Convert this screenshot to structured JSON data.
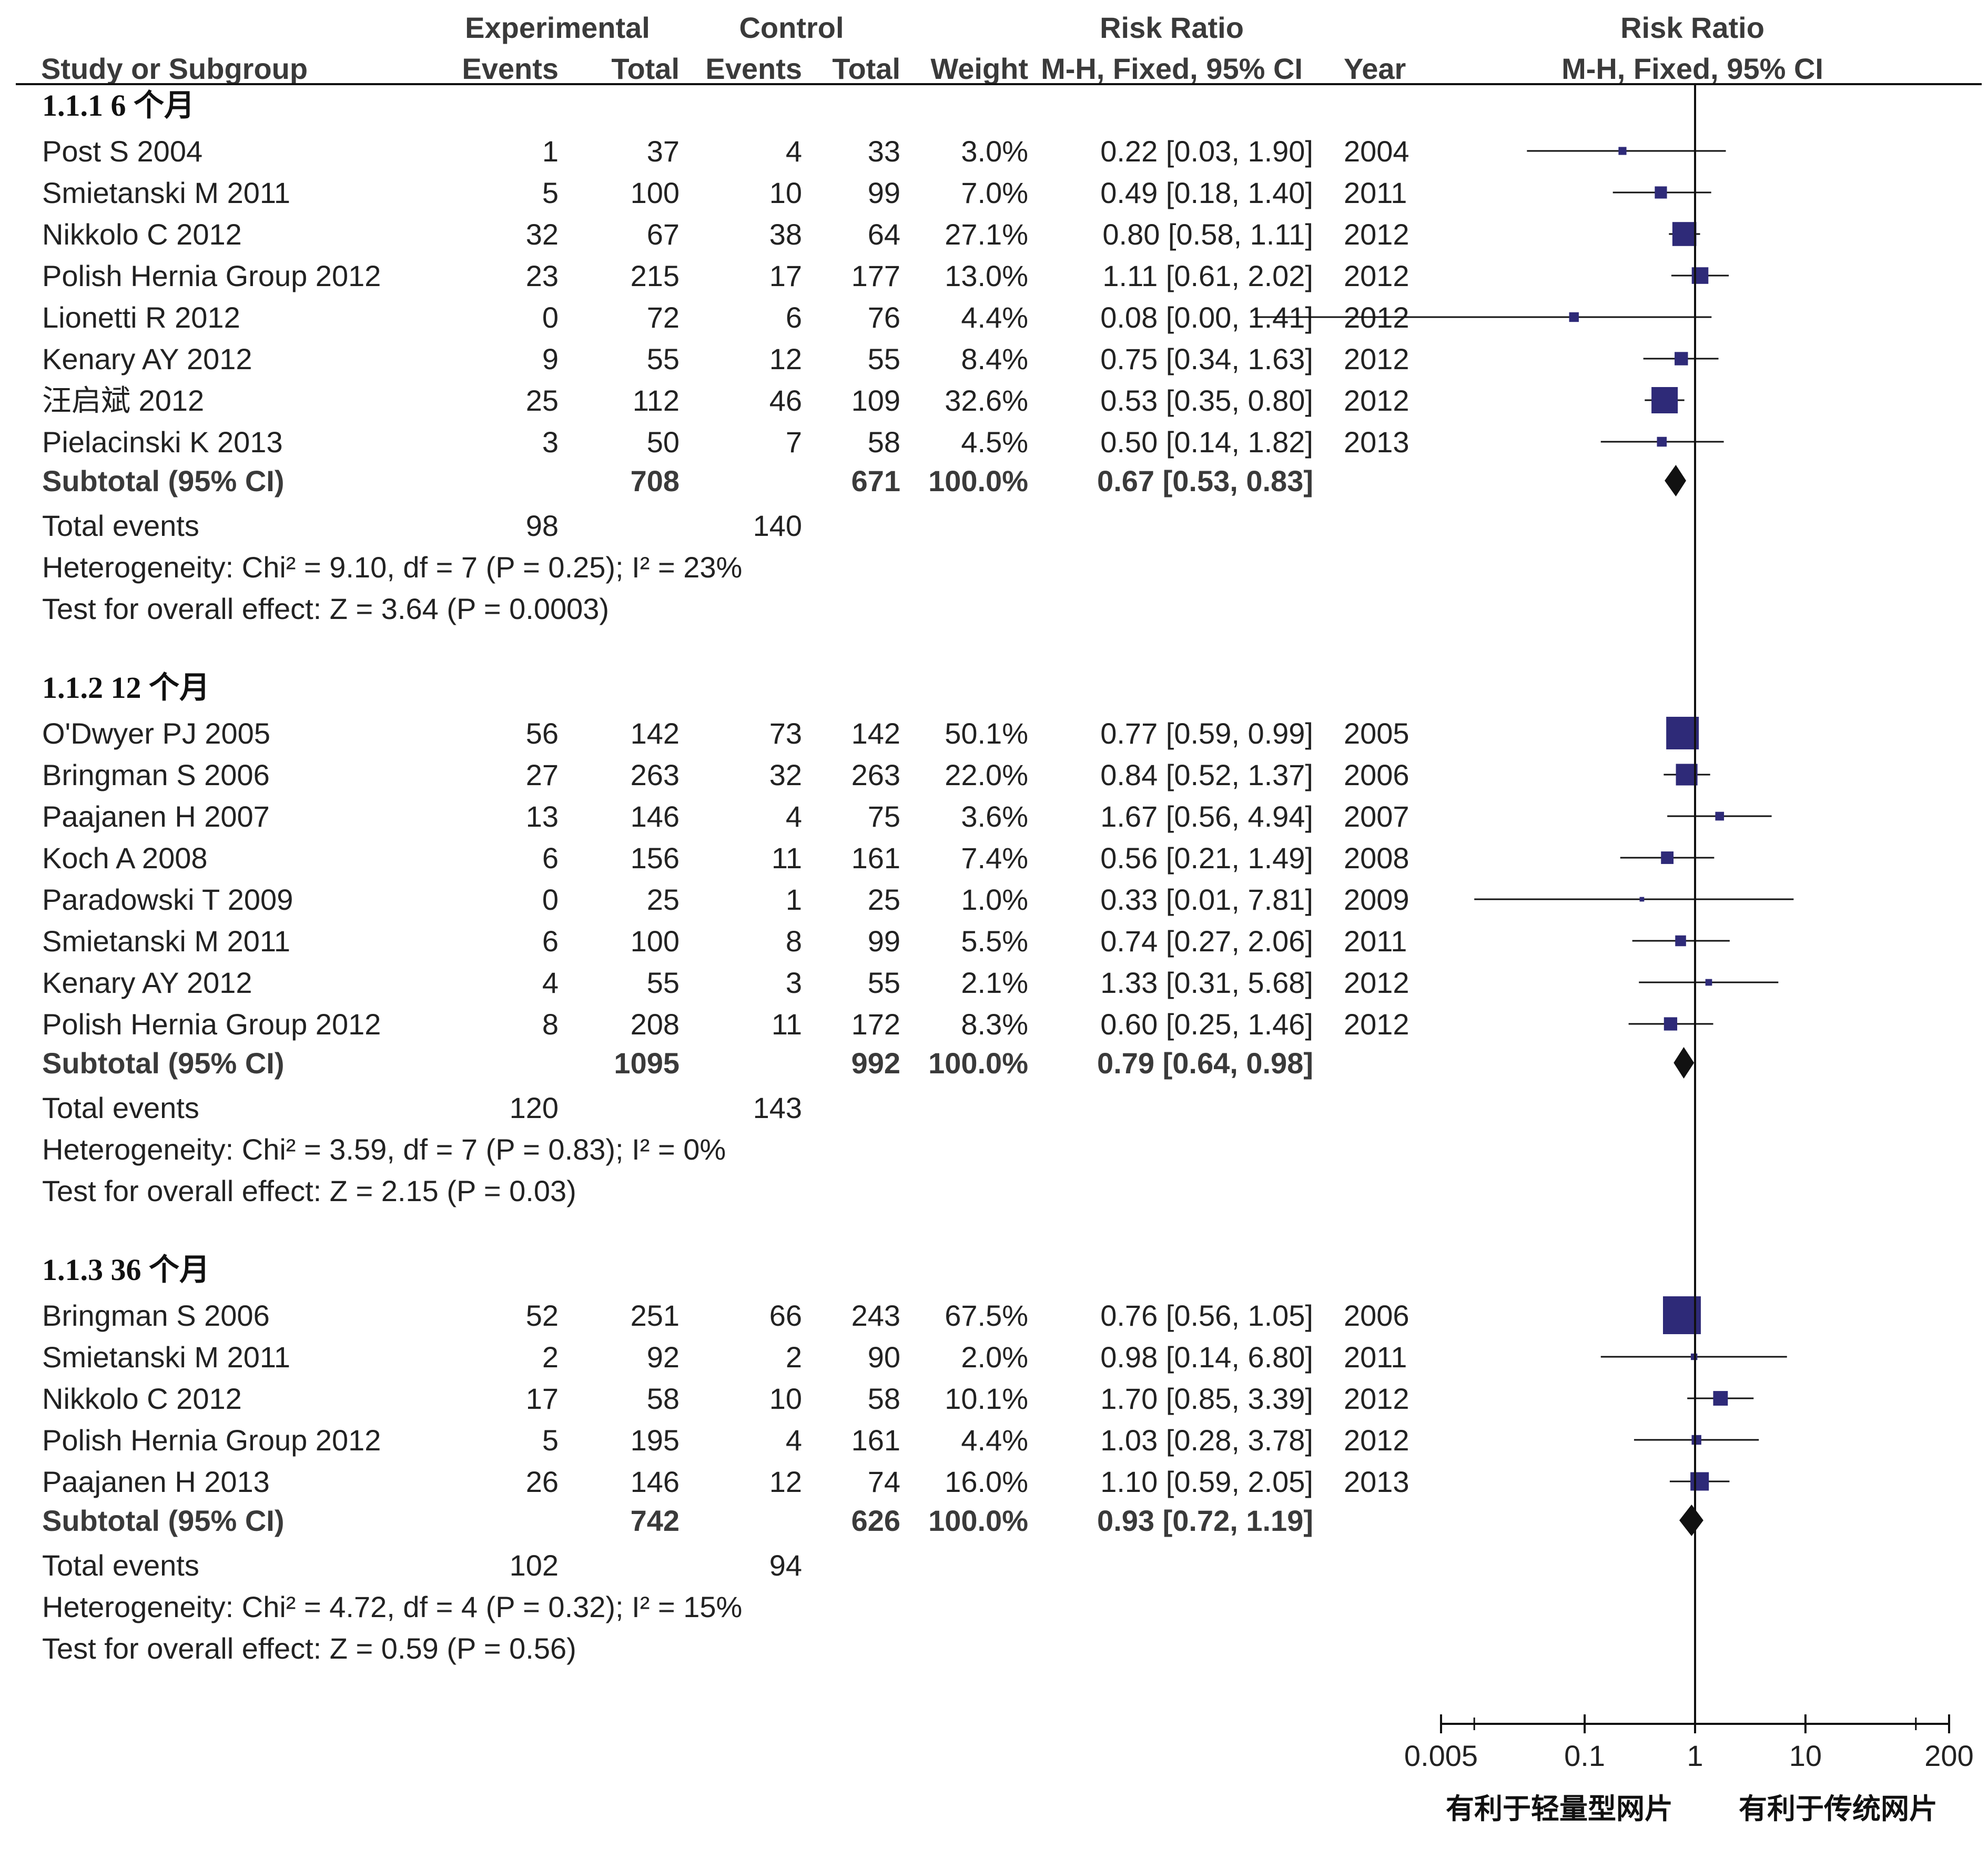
{
  "header": {
    "col_study": "Study or Subgroup",
    "group_exp": "Experimental",
    "group_ctrl": "Control",
    "col_events": "Events",
    "col_total": "Total",
    "col_weight": "Weight",
    "col_rr": "Risk Ratio",
    "col_method": "M-H, Fixed, 95% CI",
    "col_year": "Year",
    "plot_title": "Risk Ratio",
    "plot_method": "M-H, Fixed, 95% CI"
  },
  "subtotal_label": "Subtotal (95% CI)",
  "total_events_label": "Total events",
  "axis": {
    "ticks": [
      "0.005",
      "0.1",
      "1",
      "10",
      "200"
    ],
    "tick_values": [
      0.005,
      0.1,
      1,
      10,
      200
    ],
    "favours_left": "有利于轻量型网片",
    "favours_right": "有利于传统网片"
  },
  "colors": {
    "square": "#2e2a78",
    "diamond": "#111111",
    "line": "#111111"
  },
  "chart_data": {
    "type": "forest",
    "measure": "Risk Ratio",
    "method": "M-H, Fixed, 95% CI",
    "x_scale": "log",
    "xlim": [
      0.005,
      200
    ],
    "subgroups": [
      {
        "label": "1.1.1 6 个月",
        "studies": [
          {
            "study": "Post S 2004",
            "e_events": "1",
            "e_total": "37",
            "c_events": "4",
            "c_total": "33",
            "weight": "3.0%",
            "ci_text": "0.22 [0.03, 1.90]",
            "year": "2004",
            "rr": 0.22,
            "lo": 0.03,
            "hi": 1.9
          },
          {
            "study": "Smietanski M 2011",
            "e_events": "5",
            "e_total": "100",
            "c_events": "10",
            "c_total": "99",
            "weight": "7.0%",
            "ci_text": "0.49 [0.18, 1.40]",
            "year": "2011",
            "rr": 0.49,
            "lo": 0.18,
            "hi": 1.4
          },
          {
            "study": "Nikkolo C 2012",
            "e_events": "32",
            "e_total": "67",
            "c_events": "38",
            "c_total": "64",
            "weight": "27.1%",
            "ci_text": "0.80 [0.58, 1.11]",
            "year": "2012",
            "rr": 0.8,
            "lo": 0.58,
            "hi": 1.11
          },
          {
            "study": "Polish Hernia Group 2012",
            "e_events": "23",
            "e_total": "215",
            "c_events": "17",
            "c_total": "177",
            "weight": "13.0%",
            "ci_text": "1.11 [0.61, 2.02]",
            "year": "2012",
            "rr": 1.11,
            "lo": 0.61,
            "hi": 2.02
          },
          {
            "study": "Lionetti R 2012",
            "e_events": "0",
            "e_total": "72",
            "c_events": "6",
            "c_total": "76",
            "weight": "4.4%",
            "ci_text": "0.08 [0.00, 1.41]",
            "year": "2012",
            "rr": 0.08,
            "lo": 0.0,
            "hi": 1.41
          },
          {
            "study": "Kenary AY 2012",
            "e_events": "9",
            "e_total": "55",
            "c_events": "12",
            "c_total": "55",
            "weight": "8.4%",
            "ci_text": "0.75 [0.34, 1.63]",
            "year": "2012",
            "rr": 0.75,
            "lo": 0.34,
            "hi": 1.63
          },
          {
            "study": "汪启斌 2012",
            "e_events": "25",
            "e_total": "112",
            "c_events": "46",
            "c_total": "109",
            "weight": "32.6%",
            "ci_text": "0.53 [0.35, 0.80]",
            "year": "2012",
            "rr": 0.53,
            "lo": 0.35,
            "hi": 0.8
          },
          {
            "study": "Pielacinski K 2013",
            "e_events": "3",
            "e_total": "50",
            "c_events": "7",
            "c_total": "58",
            "weight": "4.5%",
            "ci_text": "0.50 [0.14, 1.82]",
            "year": "2013",
            "rr": 0.5,
            "lo": 0.14,
            "hi": 1.82
          }
        ],
        "subtotal": {
          "e_total": "708",
          "c_total": "671",
          "weight": "100.0%",
          "ci_text": "0.67 [0.53, 0.83]",
          "rr": 0.67,
          "lo": 0.53,
          "hi": 0.83
        },
        "total_events": {
          "e": "98",
          "c": "140"
        },
        "heterogeneity": "Heterogeneity: Chi² = 9.10, df = 7 (P = 0.25); I² = 23%",
        "overall_effect": "Test for overall effect: Z = 3.64 (P = 0.0003)"
      },
      {
        "label": "1.1.2 12 个月",
        "studies": [
          {
            "study": "O'Dwyer PJ 2005",
            "e_events": "56",
            "e_total": "142",
            "c_events": "73",
            "c_total": "142",
            "weight": "50.1%",
            "ci_text": "0.77 [0.59, 0.99]",
            "year": "2005",
            "rr": 0.77,
            "lo": 0.59,
            "hi": 0.99
          },
          {
            "study": "Bringman S 2006",
            "e_events": "27",
            "e_total": "263",
            "c_events": "32",
            "c_total": "263",
            "weight": "22.0%",
            "ci_text": "0.84 [0.52, 1.37]",
            "year": "2006",
            "rr": 0.84,
            "lo": 0.52,
            "hi": 1.37
          },
          {
            "study": "Paajanen H 2007",
            "e_events": "13",
            "e_total": "146",
            "c_events": "4",
            "c_total": "75",
            "weight": "3.6%",
            "ci_text": "1.67 [0.56, 4.94]",
            "year": "2007",
            "rr": 1.67,
            "lo": 0.56,
            "hi": 4.94
          },
          {
            "study": "Koch A 2008",
            "e_events": "6",
            "e_total": "156",
            "c_events": "11",
            "c_total": "161",
            "weight": "7.4%",
            "ci_text": "0.56 [0.21, 1.49]",
            "year": "2008",
            "rr": 0.56,
            "lo": 0.21,
            "hi": 1.49
          },
          {
            "study": "Paradowski T 2009",
            "e_events": "0",
            "e_total": "25",
            "c_events": "1",
            "c_total": "25",
            "weight": "1.0%",
            "ci_text": "0.33 [0.01, 7.81]",
            "year": "2009",
            "rr": 0.33,
            "lo": 0.01,
            "hi": 7.81
          },
          {
            "study": "Smietanski M 2011",
            "e_events": "6",
            "e_total": "100",
            "c_events": "8",
            "c_total": "99",
            "weight": "5.5%",
            "ci_text": "0.74 [0.27, 2.06]",
            "year": "2011",
            "rr": 0.74,
            "lo": 0.27,
            "hi": 2.06
          },
          {
            "study": "Kenary AY 2012",
            "e_events": "4",
            "e_total": "55",
            "c_events": "3",
            "c_total": "55",
            "weight": "2.1%",
            "ci_text": "1.33 [0.31, 5.68]",
            "year": "2012",
            "rr": 1.33,
            "lo": 0.31,
            "hi": 5.68
          },
          {
            "study": "Polish Hernia Group 2012",
            "e_events": "8",
            "e_total": "208",
            "c_events": "11",
            "c_total": "172",
            "weight": "8.3%",
            "ci_text": "0.60 [0.25, 1.46]",
            "year": "2012",
            "rr": 0.6,
            "lo": 0.25,
            "hi": 1.46
          }
        ],
        "subtotal": {
          "e_total": "1095",
          "c_total": "992",
          "weight": "100.0%",
          "ci_text": "0.79 [0.64, 0.98]",
          "rr": 0.79,
          "lo": 0.64,
          "hi": 0.98
        },
        "total_events": {
          "e": "120",
          "c": "143"
        },
        "heterogeneity": "Heterogeneity: Chi² = 3.59, df = 7 (P = 0.83); I² = 0%",
        "overall_effect": "Test for overall effect: Z = 2.15 (P = 0.03)"
      },
      {
        "label": "1.1.3 36 个月",
        "studies": [
          {
            "study": "Bringman S 2006",
            "e_events": "52",
            "e_total": "251",
            "c_events": "66",
            "c_total": "243",
            "weight": "67.5%",
            "ci_text": "0.76 [0.56, 1.05]",
            "year": "2006",
            "rr": 0.76,
            "lo": 0.56,
            "hi": 1.05
          },
          {
            "study": "Smietanski M 2011",
            "e_events": "2",
            "e_total": "92",
            "c_events": "2",
            "c_total": "90",
            "weight": "2.0%",
            "ci_text": "0.98 [0.14, 6.80]",
            "year": "2011",
            "rr": 0.98,
            "lo": 0.14,
            "hi": 6.8
          },
          {
            "study": "Nikkolo C 2012",
            "e_events": "17",
            "e_total": "58",
            "c_events": "10",
            "c_total": "58",
            "weight": "10.1%",
            "ci_text": "1.70 [0.85, 3.39]",
            "year": "2012",
            "rr": 1.7,
            "lo": 0.85,
            "hi": 3.39
          },
          {
            "study": "Polish Hernia Group 2012",
            "e_events": "5",
            "e_total": "195",
            "c_events": "4",
            "c_total": "161",
            "weight": "4.4%",
            "ci_text": "1.03 [0.28, 3.78]",
            "year": "2012",
            "rr": 1.03,
            "lo": 0.28,
            "hi": 3.78
          },
          {
            "study": "Paajanen H 2013",
            "e_events": "26",
            "e_total": "146",
            "c_events": "12",
            "c_total": "74",
            "weight": "16.0%",
            "ci_text": "1.10 [0.59, 2.05]",
            "year": "2013",
            "rr": 1.1,
            "lo": 0.59,
            "hi": 2.05
          }
        ],
        "subtotal": {
          "e_total": "742",
          "c_total": "626",
          "weight": "100.0%",
          "ci_text": "0.93 [0.72, 1.19]",
          "rr": 0.93,
          "lo": 0.72,
          "hi": 1.19
        },
        "total_events": {
          "e": "102",
          "c": "94"
        },
        "heterogeneity": "Heterogeneity: Chi² = 4.72, df = 4 (P = 0.32); I² = 15%",
        "overall_effect": "Test for overall effect: Z = 0.59 (P = 0.56)"
      }
    ]
  }
}
